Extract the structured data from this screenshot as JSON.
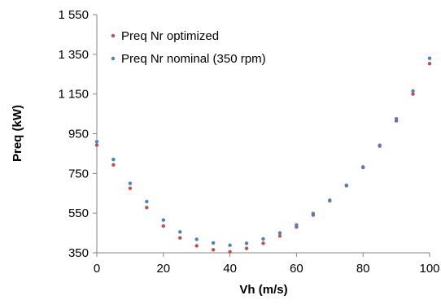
{
  "chart_data": {
    "type": "scatter",
    "title": "",
    "xlabel": "Vh (m/s)",
    "ylabel": "Preq (kW)",
    "xlim": [
      0,
      100
    ],
    "ylim": [
      350,
      1550
    ],
    "x_ticks": [
      0,
      20,
      40,
      60,
      80,
      100
    ],
    "y_ticks": [
      350,
      550,
      750,
      950,
      1150,
      1350,
      1550
    ],
    "x_tick_labels": [
      "0",
      "20",
      "40",
      "60",
      "80",
      "100"
    ],
    "y_tick_labels": [
      "350",
      "550",
      "750",
      "950",
      "1 150",
      "1 350",
      "1 550"
    ],
    "grid": false,
    "legend_position": "top-left",
    "series": [
      {
        "name": "Preq Nr optimized",
        "color": "#c0504d",
        "x": [
          0,
          5,
          10,
          15,
          20,
          25,
          30,
          35,
          40,
          45,
          50,
          55,
          60,
          65,
          70,
          75,
          80,
          85,
          90,
          95,
          100
        ],
        "y": [
          893,
          793,
          675,
          578,
          485,
          425,
          385,
          365,
          355,
          372,
          398,
          435,
          480,
          540,
          612,
          688,
          780,
          888,
          1015,
          1150,
          1303
        ]
      },
      {
        "name": "Preq Nr nominal (350 rpm)",
        "color": "#4f81bd",
        "x": [
          0,
          5,
          10,
          15,
          20,
          25,
          30,
          35,
          40,
          45,
          50,
          55,
          60,
          65,
          70,
          75,
          80,
          85,
          90,
          95,
          100
        ],
        "y": [
          910,
          820,
          700,
          608,
          515,
          455,
          418,
          400,
          388,
          398,
          420,
          450,
          490,
          548,
          615,
          690,
          783,
          892,
          1025,
          1165,
          1330
        ]
      }
    ]
  }
}
